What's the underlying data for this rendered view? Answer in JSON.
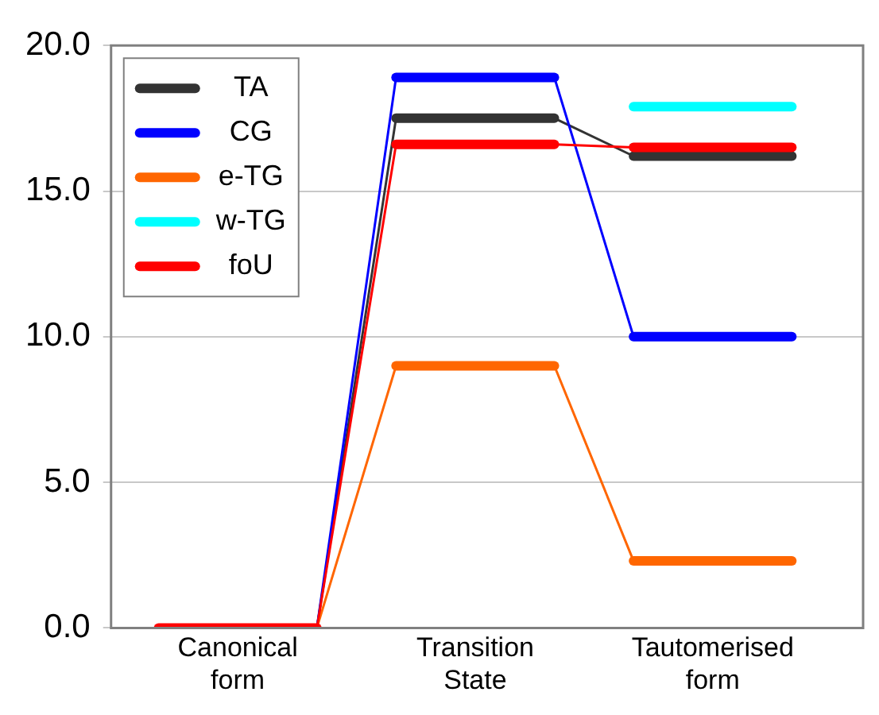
{
  "chart_data": {
    "type": "line",
    "categories": [
      null,
      "Canonical form",
      null,
      null,
      "Transition State",
      null,
      null,
      "Tautomerised form",
      null
    ],
    "series": [
      {
        "name": "TA",
        "color": "#333333",
        "values": [
          null,
          null,
          0,
          17.5,
          17.5,
          17.5,
          16.2,
          16.2,
          16.2
        ]
      },
      {
        "name": "CG",
        "color": "#0000ff",
        "values": [
          null,
          null,
          0,
          18.9,
          18.9,
          18.9,
          10.0,
          10.0,
          10.0
        ]
      },
      {
        "name": "e-TG",
        "color": "#ff6600",
        "values": [
          null,
          null,
          0,
          9.0,
          9.0,
          9.0,
          2.3,
          2.3,
          2.3
        ]
      },
      {
        "name": "w-TG",
        "color": "#00ffff",
        "values": [
          null,
          null,
          null,
          null,
          null,
          null,
          17.9,
          17.9,
          17.9
        ]
      },
      {
        "name": "foU",
        "color": "#ff0000",
        "values": [
          0,
          0,
          0,
          16.6,
          16.6,
          16.6,
          16.5,
          16.5,
          16.5
        ]
      }
    ],
    "ylim": [
      0,
      20
    ],
    "yticks": [
      {
        "value": 0,
        "label": "0.0"
      },
      {
        "value": 5,
        "label": "5.0"
      },
      {
        "value": 10,
        "label": "10.0"
      },
      {
        "value": 15,
        "label": "15.0"
      },
      {
        "value": 20,
        "label": "20.0"
      }
    ],
    "grid": "y",
    "legend": "top left",
    "marker": "none",
    "line_style": "solid"
  }
}
